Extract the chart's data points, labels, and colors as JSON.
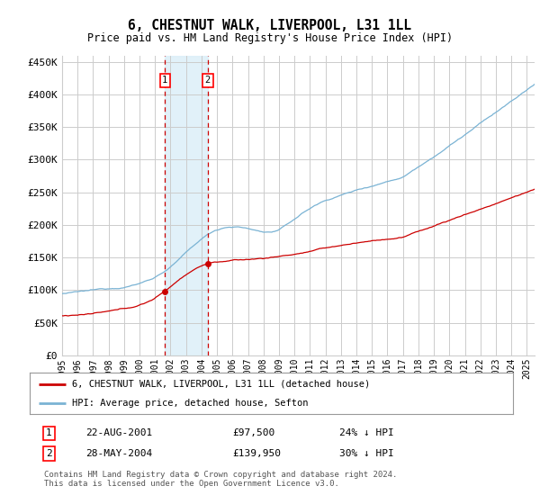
{
  "title": "6, CHESTNUT WALK, LIVERPOOL, L31 1LL",
  "subtitle": "Price paid vs. HM Land Registry's House Price Index (HPI)",
  "ylabel_ticks": [
    "£0",
    "£50K",
    "£100K",
    "£150K",
    "£200K",
    "£250K",
    "£300K",
    "£350K",
    "£400K",
    "£450K"
  ],
  "ylabel_values": [
    0,
    50000,
    100000,
    150000,
    200000,
    250000,
    300000,
    350000,
    400000,
    450000
  ],
  "ylim": [
    0,
    460000
  ],
  "xlim_start": 1995.0,
  "xlim_end": 2025.5,
  "sale1_date": 2001.64,
  "sale1_price": 97500,
  "sale1_label": "1",
  "sale2_date": 2004.4,
  "sale2_price": 139950,
  "sale2_label": "2",
  "hpi_color": "#7ab3d4",
  "price_color": "#cc0000",
  "shade_color": "#daeef8",
  "grid_color": "#cccccc",
  "background_color": "#ffffff",
  "legend_line1": "6, CHESTNUT WALK, LIVERPOOL, L31 1LL (detached house)",
  "legend_line2": "HPI: Average price, detached house, Sefton",
  "table_row1": [
    "1",
    "22-AUG-2001",
    "£97,500",
    "24% ↓ HPI"
  ],
  "table_row2": [
    "2",
    "28-MAY-2004",
    "£139,950",
    "30% ↓ HPI"
  ],
  "footnote": "Contains HM Land Registry data © Crown copyright and database right 2024.\nThis data is licensed under the Open Government Licence v3.0.",
  "x_tick_years": [
    1995,
    1996,
    1997,
    1998,
    1999,
    2000,
    2001,
    2002,
    2003,
    2004,
    2005,
    2006,
    2007,
    2008,
    2009,
    2010,
    2011,
    2012,
    2013,
    2014,
    2015,
    2016,
    2017,
    2018,
    2019,
    2020,
    2021,
    2022,
    2023,
    2024,
    2025
  ]
}
